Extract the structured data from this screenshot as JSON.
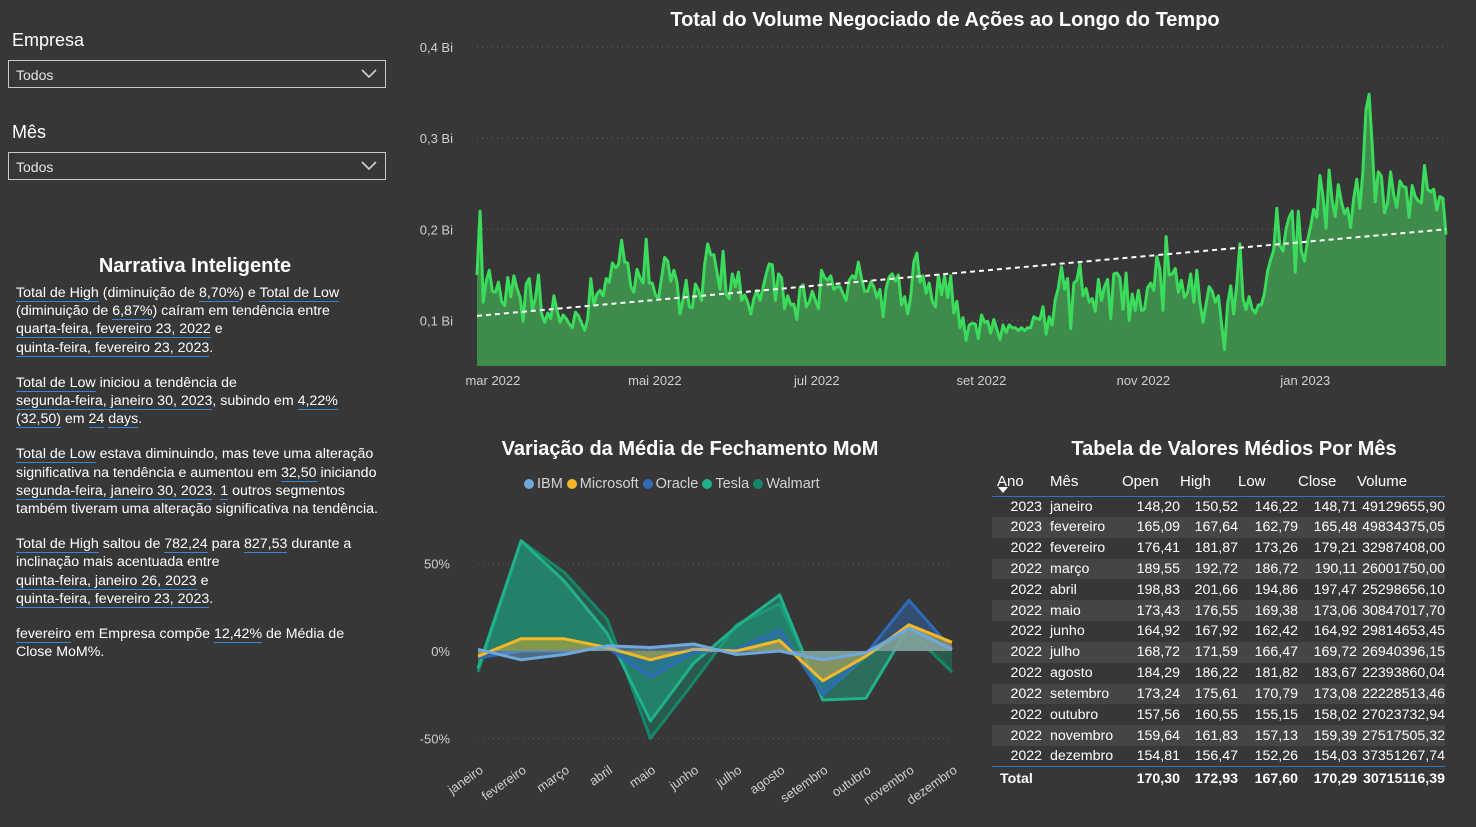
{
  "slicers": {
    "empresa": {
      "label": "Empresa",
      "value": "Todos"
    },
    "mes": {
      "label": "Mês",
      "value": "Todos"
    }
  },
  "narrative": {
    "title": "Narrativa Inteligente",
    "p1": {
      "a": "Total de High",
      "b": " (diminuição de ",
      "c": "8,70%",
      "d": ") e ",
      "e": "Total de Low",
      "f": " (diminuição de ",
      "g": "6,87%",
      "h": ") caíram em tendência entre ",
      "i": "quarta-feira, fevereiro 23, 2022",
      "j": " e ",
      "k": "quinta-feira, fevereiro 23, 2023",
      "l": "."
    },
    "p2": {
      "a": "Total de Low",
      "b": " iniciou a tendência de ",
      "c": "segunda-feira, janeiro 30, 2023",
      "d": ", subindo em ",
      "e": "4,22%",
      "f": "(32,50)",
      "g": " em ",
      "h": "24",
      "i": "days",
      "j": "."
    },
    "p3": {
      "a": "Total de Low",
      "b": " estava diminuindo, mas teve uma alteração significativa na tendência e aumentou em ",
      "c": "32,50",
      "d": " iniciando ",
      "e": "segunda-feira, janeiro 30, 2023",
      "f": ". ",
      "g": "1",
      "h": " outros segmentos também tiveram uma alteração significativa na tendência."
    },
    "p4": {
      "a": "Total de High",
      "b": " saltou de ",
      "c": "782,24",
      "d": " para ",
      "e": "827,53",
      "f": " durante a inclinação mais acentuada entre ",
      "g": "quinta-feira, janeiro 26, 2023",
      "h": " e ",
      "i": "quinta-feira, fevereiro 23, 2023",
      "j": "."
    },
    "p5": {
      "a": "fevereiro",
      "b": " em Empresa  compõe ",
      "c": "12,42%",
      "d": " de Média de Close MoM%."
    }
  },
  "colors": {
    "background": "#373737",
    "volume_line": "#3bdc5b",
    "volume_fill": "#3f8b4c",
    "trend": "#ffffff",
    "table_underline": "#2f73c0"
  },
  "chart_data": [
    {
      "type": "area",
      "title": "Total do Volume Negociado de Ações ao Longo do Tempo",
      "x_tick_labels": [
        "mar 2022",
        "mai 2022",
        "jul 2022",
        "set 2022",
        "nov 2022",
        "jan 2023"
      ],
      "y_tick_labels": [
        "0,1 Bi",
        "0,2 Bi",
        "0,3 Bi",
        "0,4 Bi"
      ],
      "y_ticks": [
        0.1,
        0.2,
        0.3,
        0.4
      ],
      "ylim": [
        0.05,
        0.4
      ],
      "x_start": "2022-02-23",
      "x_end": "2023-02-23",
      "grid": true,
      "trend_line": {
        "start": 0.105,
        "end": 0.2
      },
      "series": [
        {
          "values": [
            0.15,
            0.22,
            0.12,
            0.143,
            0.155,
            0.132,
            0.131,
            0.142,
            0.121,
            0.116,
            0.147,
            0.126,
            0.149,
            0.135,
            0.125,
            0.099,
            0.14,
            0.146,
            0.112,
            0.124,
            0.15,
            0.107,
            0.098,
            0.108,
            0.102,
            0.127,
            0.111,
            0.098,
            0.106,
            0.102,
            0.096,
            0.092,
            0.109,
            0.105,
            0.097,
            0.089,
            0.102,
            0.146,
            0.117,
            0.129,
            0.133,
            0.127,
            0.146,
            0.142,
            0.163,
            0.158,
            0.161,
            0.188,
            0.164,
            0.163,
            0.137,
            0.131,
            0.156,
            0.147,
            0.141,
            0.189,
            0.141,
            0.141,
            0.128,
            0.124,
            0.147,
            0.169,
            0.165,
            0.143,
            0.155,
            0.142,
            0.107,
            0.123,
            0.144,
            0.115,
            0.114,
            0.14,
            0.133,
            0.122,
            0.161,
            0.184,
            0.172,
            0.172,
            0.153,
            0.134,
            0.176,
            0.129,
            0.124,
            0.151,
            0.137,
            0.153,
            0.122,
            0.128,
            0.12,
            0.107,
            0.124,
            0.133,
            0.122,
            0.136,
            0.151,
            0.162,
            0.161,
            0.122,
            0.151,
            0.147,
            0.113,
            0.127,
            0.117,
            0.118,
            0.101,
            0.136,
            0.139,
            0.115,
            0.12,
            0.132,
            0.122,
            0.113,
            0.155,
            0.147,
            0.144,
            0.149,
            0.134,
            0.137,
            0.137,
            0.129,
            0.122,
            0.144,
            0.149,
            0.146,
            0.164,
            0.146,
            0.132,
            0.132,
            0.142,
            0.137,
            0.125,
            0.134,
            0.104,
            0.135,
            0.148,
            0.151,
            0.143,
            0.15,
            0.117,
            0.126,
            0.107,
            0.126,
            0.164,
            0.174,
            0.142,
            0.149,
            0.13,
            0.141,
            0.121,
            0.115,
            0.15,
            0.128,
            0.149,
            0.125,
            0.149,
            0.108,
            0.121,
            0.092,
            0.103,
            0.078,
            0.095,
            0.097,
            0.096,
            0.08,
            0.106,
            0.098,
            0.099,
            0.086,
            0.101,
            0.09,
            0.079,
            0.095,
            0.087,
            0.095,
            0.092,
            0.092,
            0.089,
            0.092,
            0.089,
            0.092,
            0.092,
            0.104,
            0.102,
            0.101,
            0.115,
            0.085,
            0.104,
            0.095,
            0.123,
            0.136,
            0.159,
            0.134,
            0.146,
            0.091,
            0.141,
            0.144,
            0.162,
            0.127,
            0.135,
            0.12,
            0.124,
            0.11,
            0.145,
            0.122,
            0.137,
            0.145,
            0.102,
            0.151,
            0.152,
            0.147,
            0.112,
            0.152,
            0.1,
            0.129,
            0.111,
            0.133,
            0.111,
            0.112,
            0.136,
            0.141,
            0.133,
            0.17,
            0.156,
            0.111,
            0.192,
            0.15,
            0.151,
            0.157,
            0.131,
            0.144,
            0.125,
            0.131,
            0.151,
            0.12,
            0.155,
            0.12,
            0.098,
            0.118,
            0.137,
            0.132,
            0.12,
            0.127,
            0.098,
            0.068,
            0.118,
            0.138,
            0.107,
            0.14,
            0.184,
            0.124,
            0.112,
            0.126,
            0.113,
            0.108,
            0.117,
            0.117,
            0.13,
            0.154,
            0.167,
            0.177,
            0.223,
            0.182,
            0.176,
            0.2,
            0.213,
            0.22,
            0.153,
            0.22,
            0.176,
            0.165,
            0.188,
            0.203,
            0.222,
            0.213,
            0.259,
            0.236,
            0.201,
            0.265,
            0.231,
            0.214,
            0.249,
            0.23,
            0.217,
            0.223,
            0.202,
            0.234,
            0.255,
            0.223,
            0.264,
            0.331,
            0.348,
            0.292,
            0.23,
            0.263,
            0.258,
            0.218,
            0.229,
            0.263,
            0.238,
            0.224,
            0.253,
            0.247,
            0.246,
            0.213,
            0.248,
            0.236,
            0.231,
            0.229,
            0.27,
            0.244,
            0.241,
            0.244,
            0.221,
            0.236,
            0.234,
            0.194
          ]
        }
      ]
    },
    {
      "type": "area",
      "title": "Variação da Média de Fechamento MoM",
      "categories": [
        "janeiro",
        "fevereiro",
        "março",
        "abril",
        "maio",
        "junho",
        "julho",
        "agosto",
        "setembro",
        "outubro",
        "novembro",
        "dezembro"
      ],
      "y_tick_labels": [
        "50%",
        "0%",
        "-50%"
      ],
      "y_ticks": [
        50,
        0,
        -50
      ],
      "ylim": [
        -60,
        75
      ],
      "series": [
        {
          "name": "IBM",
          "color": "#6ea8dc",
          "values": [
            1,
            -5,
            -2,
            3,
            2,
            4,
            -2,
            0,
            -5,
            -1,
            13,
            1
          ]
        },
        {
          "name": "Microsoft",
          "color": "#f2b82a",
          "values": [
            -3,
            7,
            7,
            2,
            -5,
            1,
            0,
            6,
            -17,
            -3,
            15,
            5
          ]
        },
        {
          "name": "Oracle",
          "color": "#2e6ab7",
          "values": [
            -4,
            0,
            0,
            2,
            -15,
            -1,
            1,
            12,
            -25,
            -2,
            29,
            1
          ]
        },
        {
          "name": "Tesla",
          "color": "#20b08c",
          "values": [
            -10,
            63,
            40,
            10,
            -40,
            -7,
            14,
            32,
            -28,
            -27,
            14,
            1
          ]
        },
        {
          "name": "Walmart",
          "color": "#16866a",
          "values": [
            -12,
            63,
            45,
            18,
            -50,
            -18,
            15,
            27,
            -25,
            -3,
            12,
            -12
          ]
        }
      ]
    },
    {
      "type": "table",
      "title": "Tabela de Valores Médios Por Mês",
      "columns": [
        "Ano",
        "Mês",
        "Open",
        "High",
        "Low",
        "Close",
        "Volume"
      ],
      "rows": [
        [
          "2023",
          "janeiro",
          "148,20",
          "150,52",
          "146,22",
          "148,71",
          "49129655,90"
        ],
        [
          "2023",
          "fevereiro",
          "165,09",
          "167,64",
          "162,79",
          "165,48",
          "49834375,05"
        ],
        [
          "2022",
          "fevereiro",
          "176,41",
          "181,87",
          "173,26",
          "179,21",
          "32987408,00"
        ],
        [
          "2022",
          "março",
          "189,55",
          "192,72",
          "186,72",
          "190,11",
          "26001750,00"
        ],
        [
          "2022",
          "abril",
          "198,83",
          "201,66",
          "194,86",
          "197,47",
          "25298656,10"
        ],
        [
          "2022",
          "maio",
          "173,43",
          "176,55",
          "169,38",
          "173,06",
          "30847017,70"
        ],
        [
          "2022",
          "junho",
          "164,92",
          "167,92",
          "162,42",
          "164,92",
          "29814653,45"
        ],
        [
          "2022",
          "julho",
          "168,72",
          "171,59",
          "166,47",
          "169,72",
          "26940396,15"
        ],
        [
          "2022",
          "agosto",
          "184,29",
          "186,22",
          "181,82",
          "183,67",
          "22393860,04"
        ],
        [
          "2022",
          "setembro",
          "173,24",
          "175,61",
          "170,79",
          "173,08",
          "22228513,46"
        ],
        [
          "2022",
          "outubro",
          "157,56",
          "160,55",
          "155,15",
          "158,02",
          "27023732,94"
        ],
        [
          "2022",
          "novembro",
          "159,64",
          "161,83",
          "157,13",
          "159,39",
          "27517505,32"
        ],
        [
          "2022",
          "dezembro",
          "154,81",
          "156,47",
          "152,26",
          "154,03",
          "37351267,74"
        ]
      ],
      "total": [
        "Total",
        "",
        "170,30",
        "172,93",
        "167,60",
        "170,29",
        "30715116,39"
      ]
    }
  ]
}
